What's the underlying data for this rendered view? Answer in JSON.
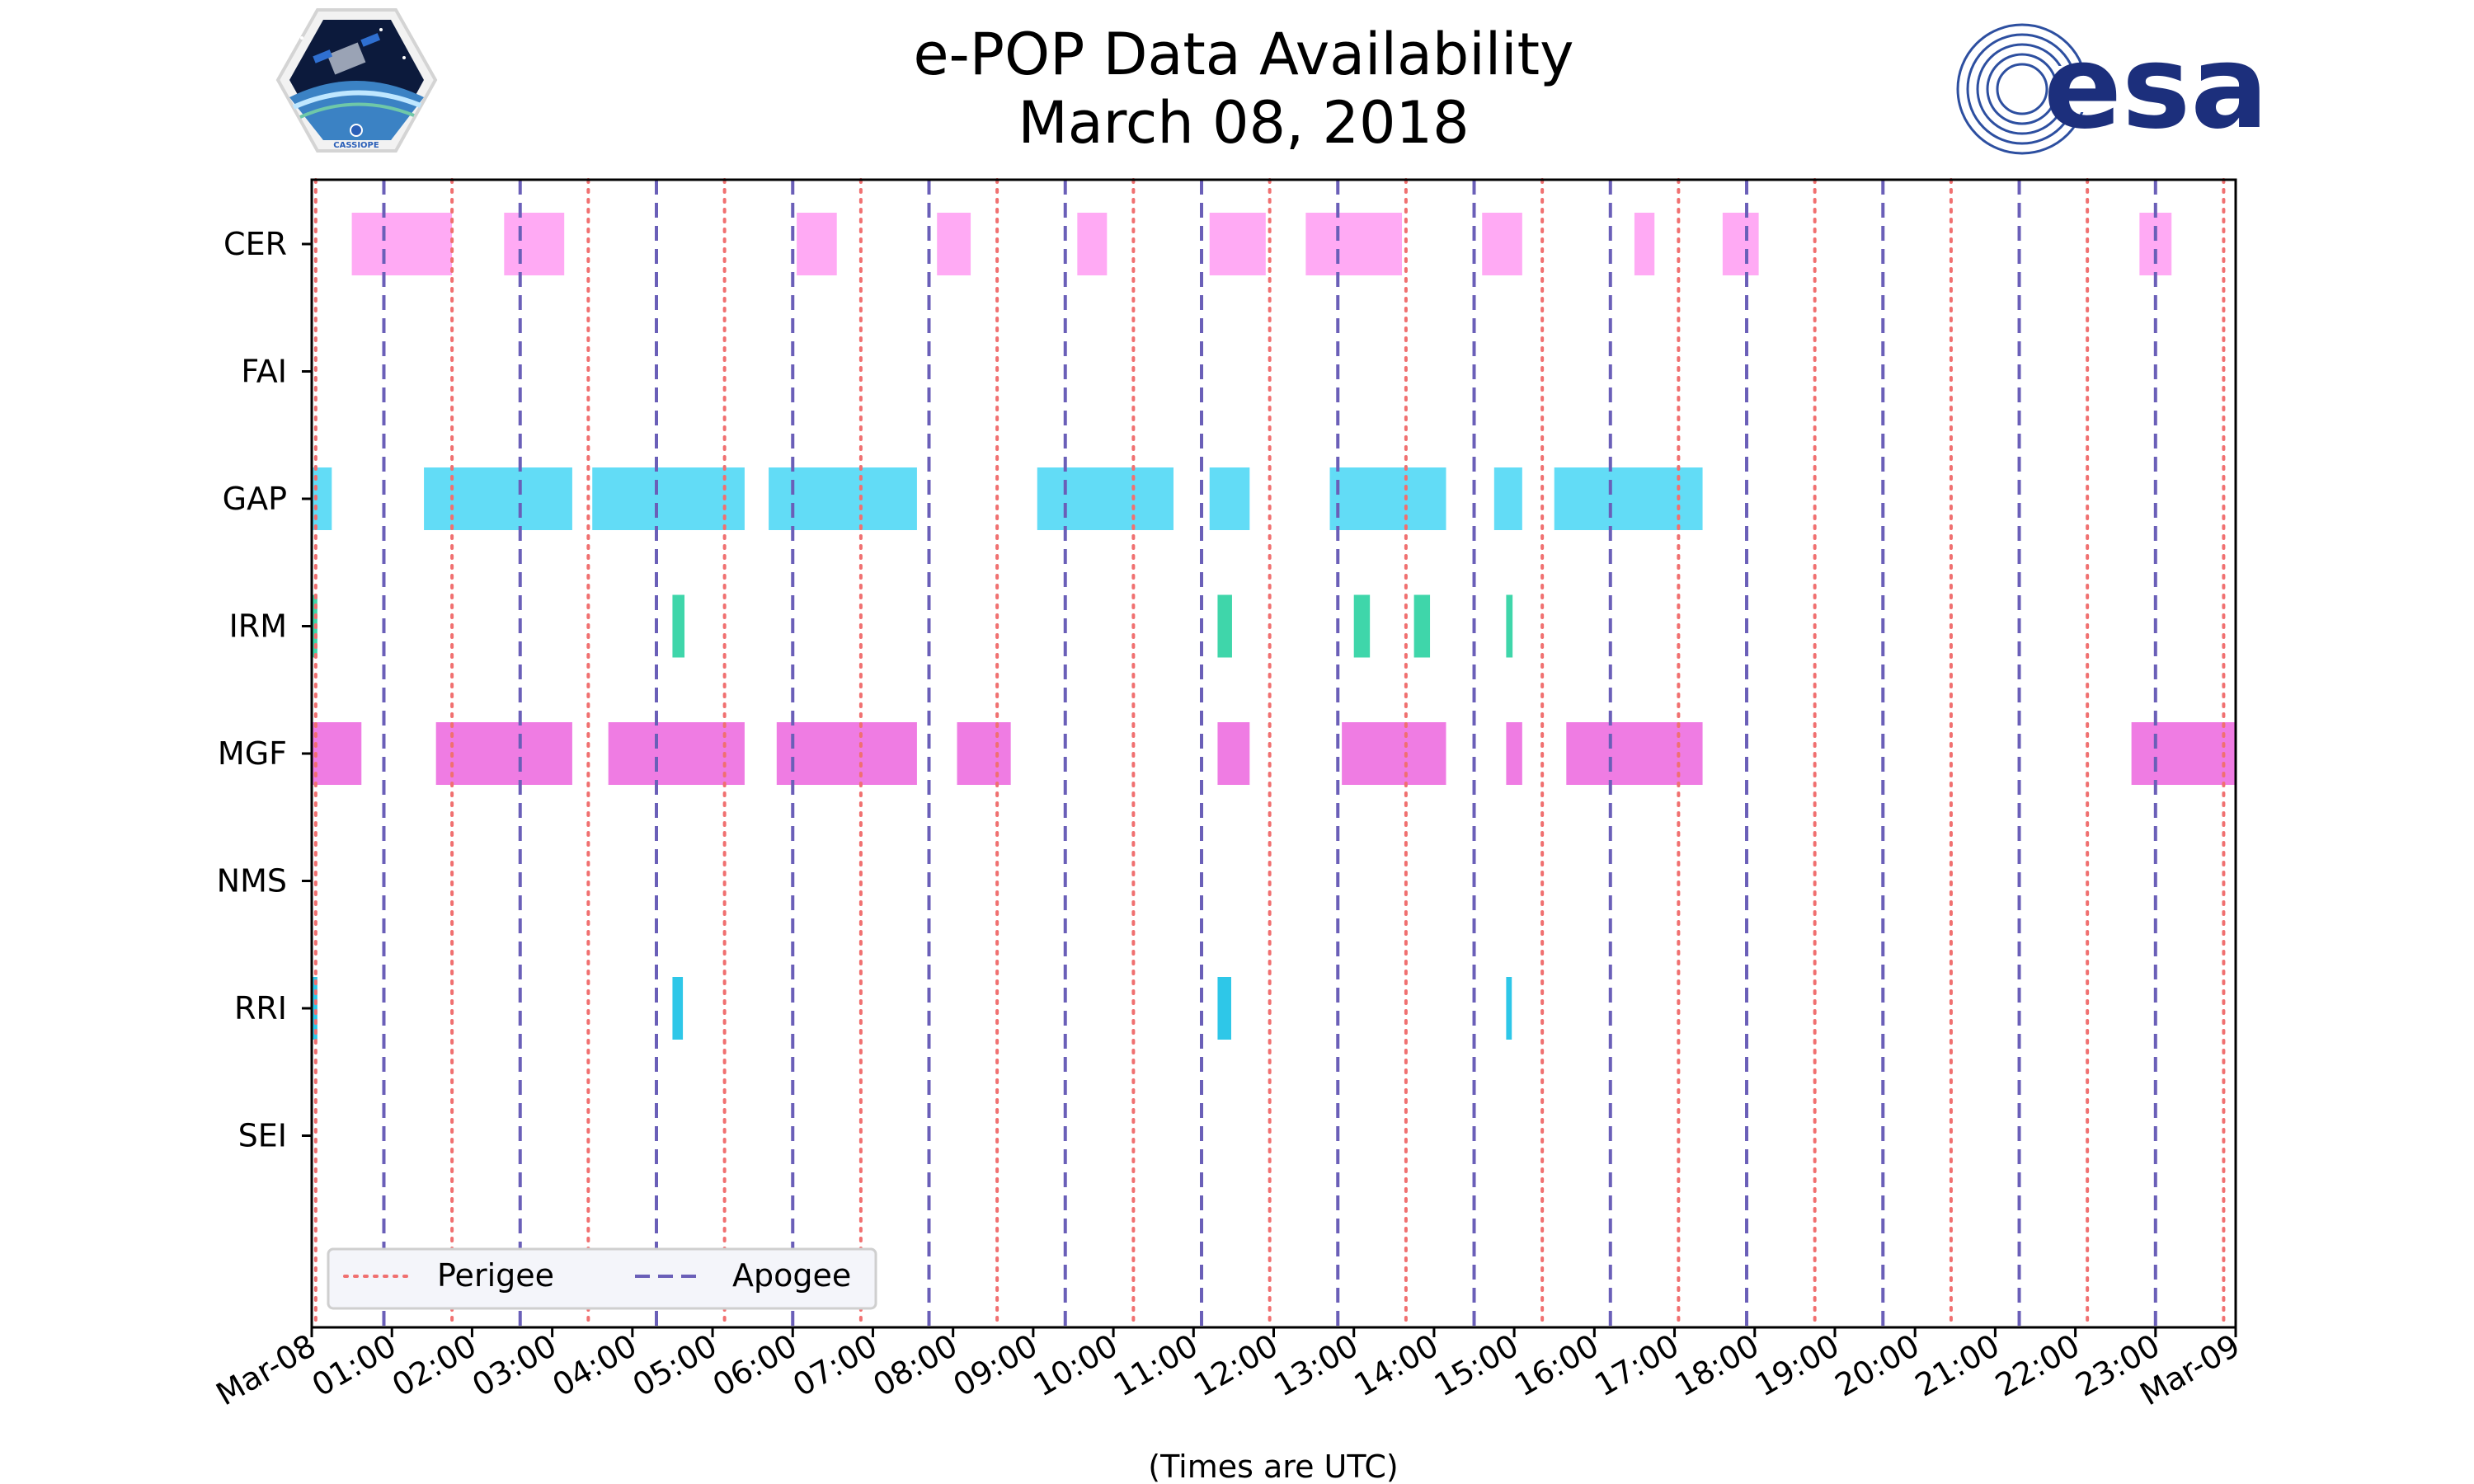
{
  "chart_data": {
    "type": "timeline",
    "title_line1": "e-POP Data Availability",
    "title_line2": "March 08, 2018",
    "xlabel": "(Times are UTC)",
    "xlim": [
      0,
      24
    ],
    "x_ticks": [
      {
        "hour": 0,
        "label": "Mar-08"
      },
      {
        "hour": 1,
        "label": "01:00"
      },
      {
        "hour": 2,
        "label": "02:00"
      },
      {
        "hour": 3,
        "label": "03:00"
      },
      {
        "hour": 4,
        "label": "04:00"
      },
      {
        "hour": 5,
        "label": "05:00"
      },
      {
        "hour": 6,
        "label": "06:00"
      },
      {
        "hour": 7,
        "label": "07:00"
      },
      {
        "hour": 8,
        "label": "08:00"
      },
      {
        "hour": 9,
        "label": "09:00"
      },
      {
        "hour": 10,
        "label": "10:00"
      },
      {
        "hour": 11,
        "label": "11:00"
      },
      {
        "hour": 12,
        "label": "12:00"
      },
      {
        "hour": 13,
        "label": "13:00"
      },
      {
        "hour": 14,
        "label": "14:00"
      },
      {
        "hour": 15,
        "label": "15:00"
      },
      {
        "hour": 16,
        "label": "16:00"
      },
      {
        "hour": 17,
        "label": "17:00"
      },
      {
        "hour": 18,
        "label": "18:00"
      },
      {
        "hour": 19,
        "label": "19:00"
      },
      {
        "hour": 20,
        "label": "20:00"
      },
      {
        "hour": 21,
        "label": "21:00"
      },
      {
        "hour": 22,
        "label": "22:00"
      },
      {
        "hour": 23,
        "label": "23:00"
      },
      {
        "hour": 24,
        "label": "Mar-09"
      }
    ],
    "instruments": [
      {
        "name": "CER",
        "color": "#ffaaf4",
        "intervals": [
          [
            0.5,
            1.75
          ],
          [
            2.4,
            3.15
          ],
          [
            6.05,
            6.55
          ],
          [
            7.8,
            8.22
          ],
          [
            9.55,
            9.92
          ],
          [
            11.2,
            11.9
          ],
          [
            12.4,
            13.6
          ],
          [
            14.6,
            15.1
          ],
          [
            16.5,
            16.75
          ],
          [
            17.6,
            18.05
          ],
          [
            22.8,
            23.2
          ]
        ]
      },
      {
        "name": "FAI",
        "color": "#e0e0e0",
        "intervals": []
      },
      {
        "name": "GAP",
        "color": "#62dcf6",
        "intervals": [
          [
            0,
            0.25
          ],
          [
            1.4,
            3.25
          ],
          [
            3.5,
            5.4
          ],
          [
            5.7,
            7.55
          ],
          [
            9.05,
            10.75
          ],
          [
            11.2,
            11.7
          ],
          [
            12.7,
            14.15
          ],
          [
            14.75,
            15.1
          ],
          [
            15.5,
            17.35
          ]
        ]
      },
      {
        "name": "IRM",
        "color": "#3fd6aa",
        "intervals": [
          [
            0,
            0.07
          ],
          [
            4.5,
            4.65
          ],
          [
            11.3,
            11.48
          ],
          [
            13,
            13.2
          ],
          [
            13.75,
            13.95
          ],
          [
            14.9,
            14.98
          ]
        ]
      },
      {
        "name": "MGF",
        "color": "#ef7ce3",
        "intervals": [
          [
            0,
            0.62
          ],
          [
            1.55,
            3.25
          ],
          [
            3.7,
            5.4
          ],
          [
            5.8,
            7.55
          ],
          [
            8.05,
            8.72
          ],
          [
            11.3,
            11.7
          ],
          [
            12.85,
            14.15
          ],
          [
            14.9,
            15.1
          ],
          [
            15.65,
            17.35
          ],
          [
            22.7,
            24
          ]
        ]
      },
      {
        "name": "NMS",
        "color": "#e0e0e0",
        "intervals": []
      },
      {
        "name": "RRI",
        "color": "#2ec7e8",
        "intervals": [
          [
            0,
            0.07
          ],
          [
            4.5,
            4.63
          ],
          [
            11.3,
            11.47
          ],
          [
            14.9,
            14.97
          ]
        ]
      },
      {
        "name": "SEI",
        "color": "#e0e0e0",
        "intervals": []
      }
    ],
    "perigee_hours": [
      0.05,
      1.75,
      3.45,
      5.15,
      6.85,
      8.55,
      10.25,
      11.95,
      13.65,
      15.35,
      17.05,
      18.75,
      20.45,
      22.15,
      23.85
    ],
    "apogee_hours": [
      0.9,
      2.6,
      4.3,
      6,
      7.7,
      9.4,
      11.1,
      12.8,
      14.5,
      16.2,
      17.9,
      19.6,
      21.3,
      23
    ],
    "legend": {
      "position": "lower-left",
      "perigee_label": "Perigee",
      "apogee_label": "Apogee"
    },
    "perigee_color": "#f07070",
    "apogee_color": "#6a5fb8"
  },
  "logos": {
    "left_badge_text": "CASSIOPE",
    "right_brand_text": "esa"
  }
}
